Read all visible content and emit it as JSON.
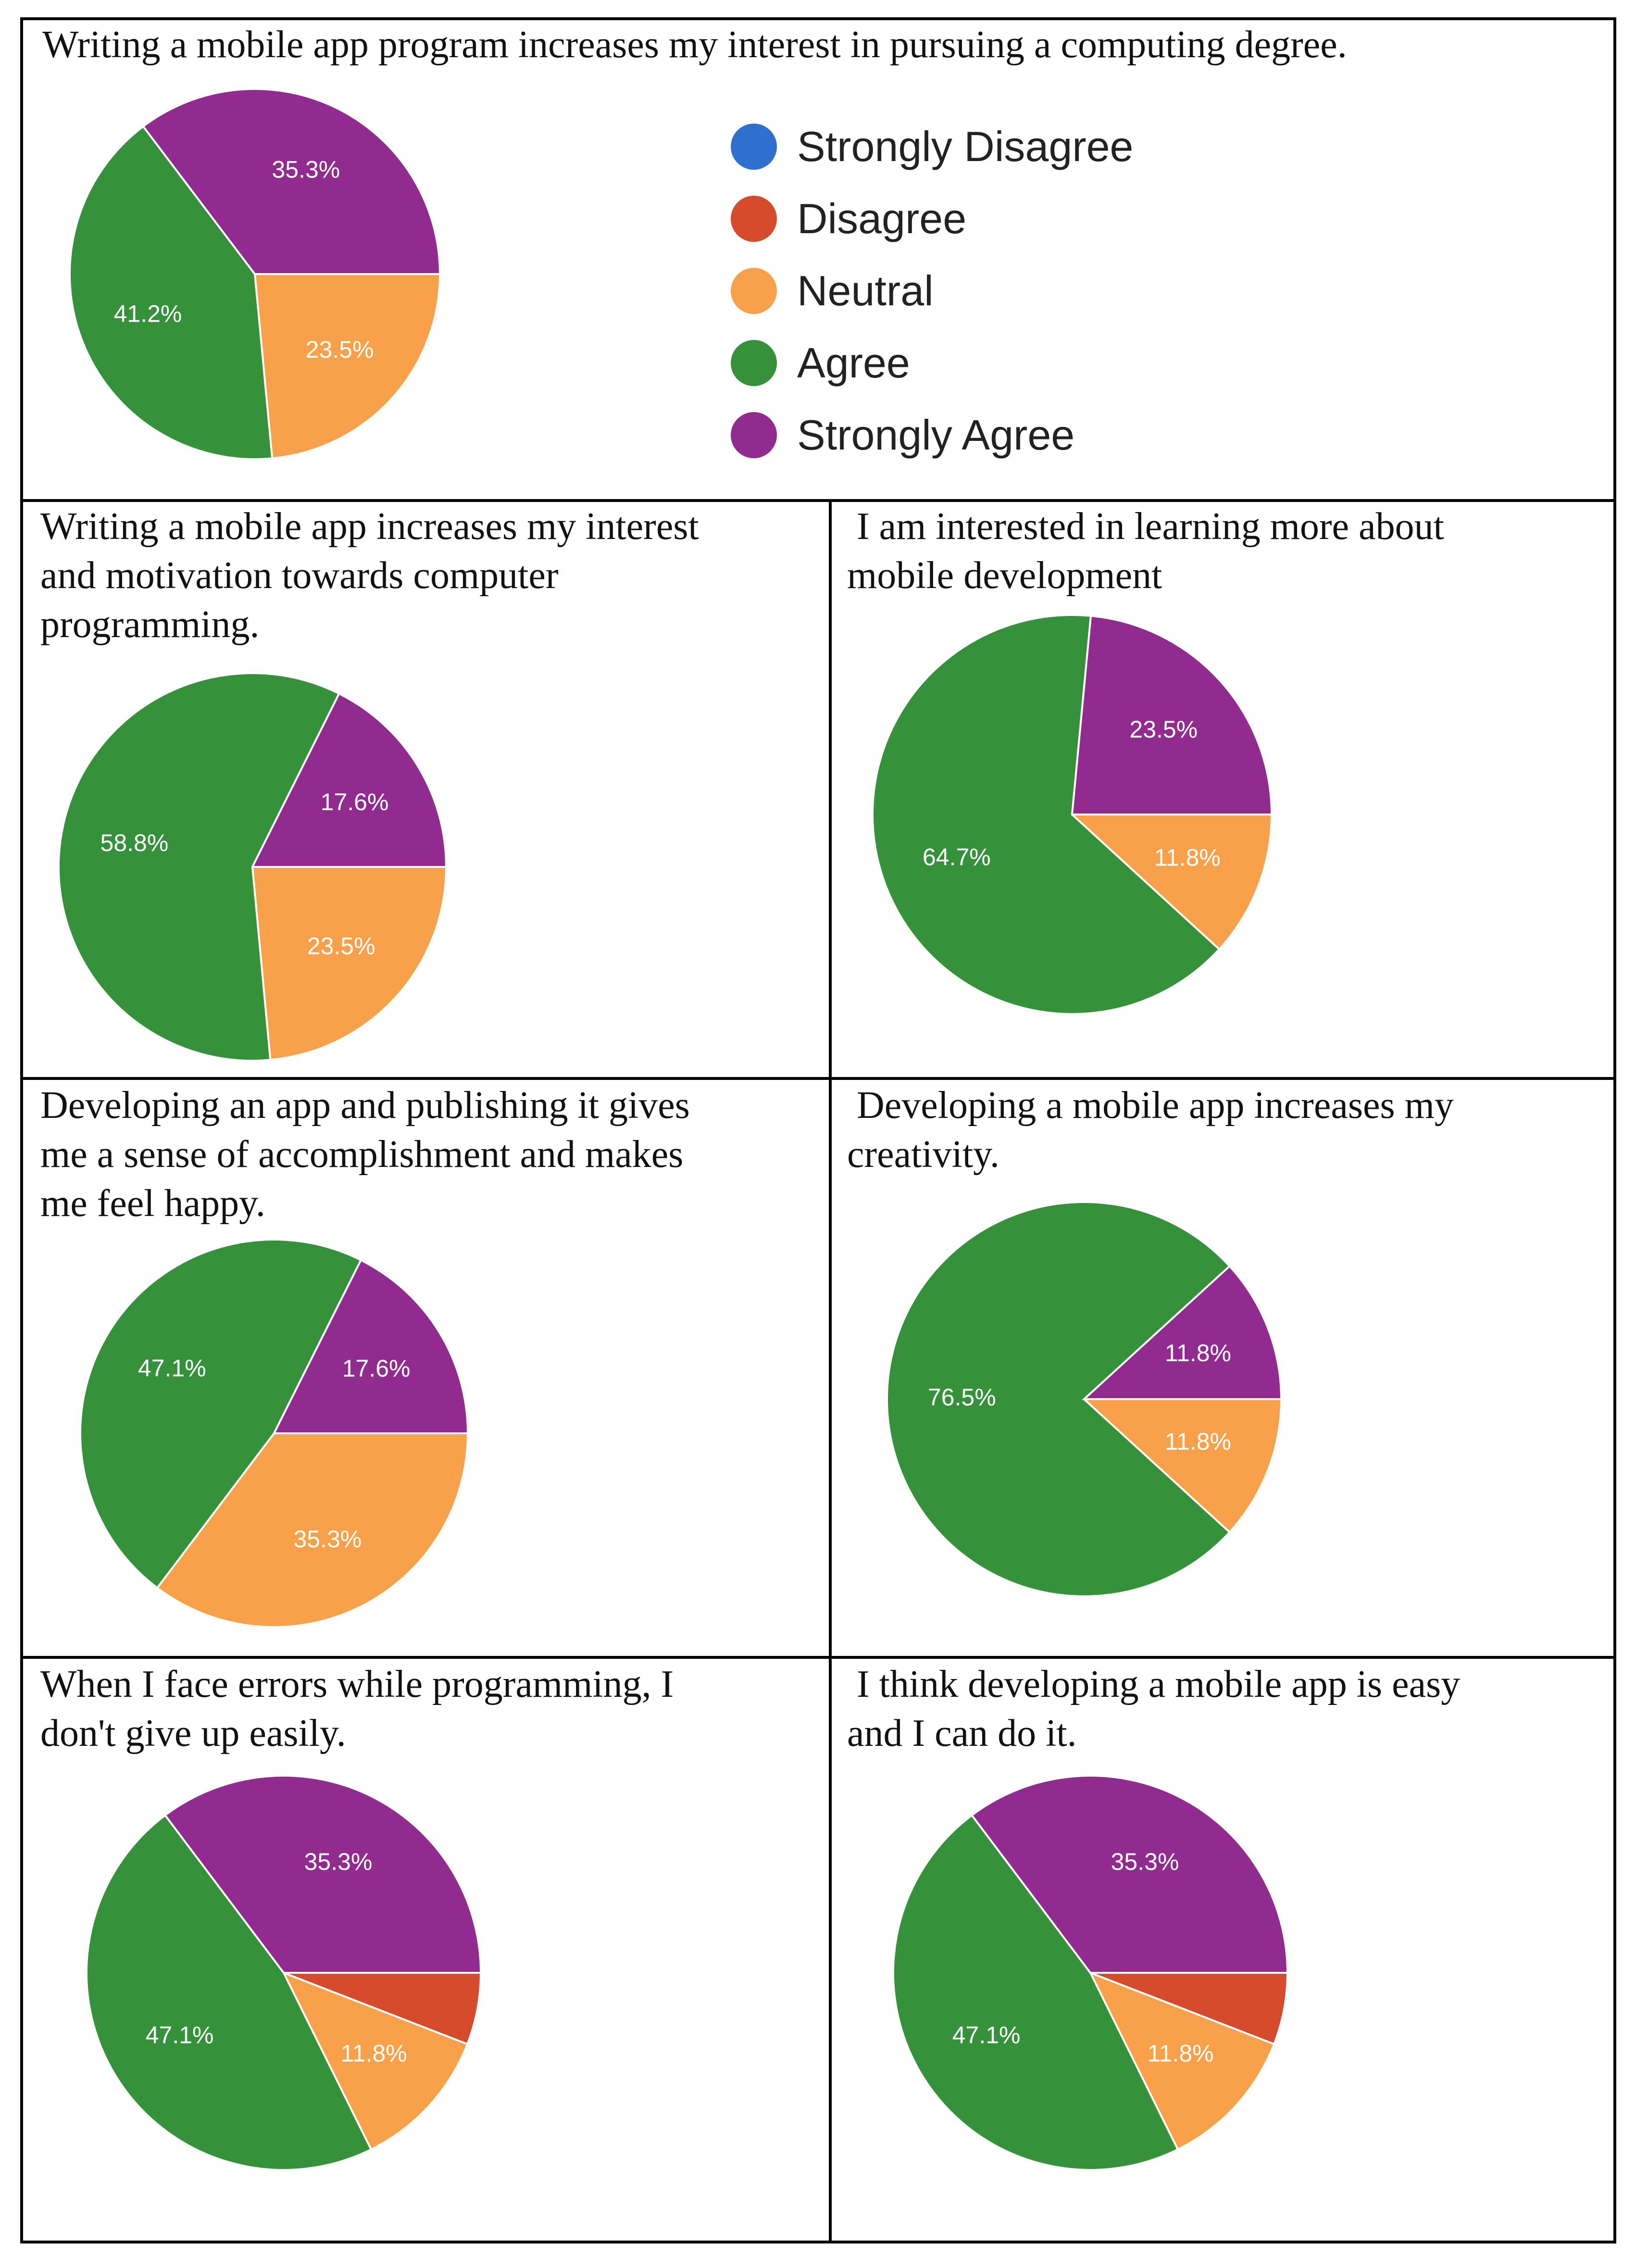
{
  "legend": [
    {
      "label": "Strongly Disagree",
      "color": "#2f6fce"
    },
    {
      "label": "Disagree",
      "color": "#d64b2b"
    },
    {
      "label": "Neutral",
      "color": "#f9a04a"
    },
    {
      "label": "Agree",
      "color": "#35913a"
    },
    {
      "label": "Strongly Agree",
      "color": "#922b90"
    }
  ],
  "titles": [
    "Writing a mobile app program increases my interest in pursuing a computing degree.",
    "Writing a mobile app increases my interest\nand motivation towards computer\nprogramming.",
    " I am interested in learning more about\nmobile development",
    "Developing an app and publishing it gives\nme a sense of accomplishment and makes\nme feel happy.",
    " Developing a mobile app increases my\ncreativity.",
    "When I face errors while programming, I\ndon't give up easily.",
    " I think developing a mobile app is easy\nand I can do it."
  ],
  "chart_data": [
    {
      "type": "pie",
      "title": "Writing a mobile app program increases my interest in pursuing a computing degree.",
      "categories": [
        "Strongly Disagree",
        "Disagree",
        "Neutral",
        "Agree",
        "Strongly Agree"
      ],
      "values": [
        0,
        0,
        23.5,
        41.2,
        35.3
      ],
      "labels": [
        "",
        "",
        "23.5%",
        "41.2%",
        "35.3%"
      ]
    },
    {
      "type": "pie",
      "title": "Writing a mobile app increases my interest and motivation towards computer programming.",
      "categories": [
        "Strongly Disagree",
        "Disagree",
        "Neutral",
        "Agree",
        "Strongly Agree"
      ],
      "values": [
        0,
        0,
        23.5,
        58.8,
        17.6
      ],
      "labels": [
        "",
        "",
        "23.5%",
        "58.8%",
        "17.6%"
      ]
    },
    {
      "type": "pie",
      "title": "I am interested in learning more about mobile development",
      "categories": [
        "Strongly Disagree",
        "Disagree",
        "Neutral",
        "Agree",
        "Strongly Agree"
      ],
      "values": [
        0,
        0,
        11.8,
        64.7,
        23.5
      ],
      "labels": [
        "",
        "",
        "11.8%",
        "64.7%",
        "23.5%"
      ]
    },
    {
      "type": "pie",
      "title": "Developing an app and publishing it gives me a sense of accomplishment and makes me feel happy.",
      "categories": [
        "Strongly Disagree",
        "Disagree",
        "Neutral",
        "Agree",
        "Strongly Agree"
      ],
      "values": [
        0,
        0,
        35.3,
        47.1,
        17.6
      ],
      "labels": [
        "",
        "",
        "35.3%",
        "47.1%",
        "17.6%"
      ]
    },
    {
      "type": "pie",
      "title": "Developing a mobile app increases my creativity.",
      "categories": [
        "Strongly Disagree",
        "Disagree",
        "Neutral",
        "Agree",
        "Strongly Agree"
      ],
      "values": [
        0,
        0,
        11.8,
        76.5,
        11.8
      ],
      "labels": [
        "",
        "",
        "11.8%",
        "76.5%",
        "11.8%"
      ]
    },
    {
      "type": "pie",
      "title": "When I face errors while programming, I don't give up easily.",
      "categories": [
        "Strongly Disagree",
        "Disagree",
        "Neutral",
        "Agree",
        "Strongly Agree"
      ],
      "values": [
        0,
        5.9,
        11.8,
        47.1,
        35.3
      ],
      "labels": [
        "",
        "",
        "11.8%",
        "47.1%",
        "35.3%"
      ]
    },
    {
      "type": "pie",
      "title": "I think developing a mobile app is easy and I can do it.",
      "categories": [
        "Strongly Disagree",
        "Disagree",
        "Neutral",
        "Agree",
        "Strongly Agree"
      ],
      "values": [
        0,
        5.9,
        11.8,
        47.1,
        35.3
      ],
      "labels": [
        "",
        "",
        "11.8%",
        "47.1%",
        "35.3%"
      ]
    }
  ]
}
